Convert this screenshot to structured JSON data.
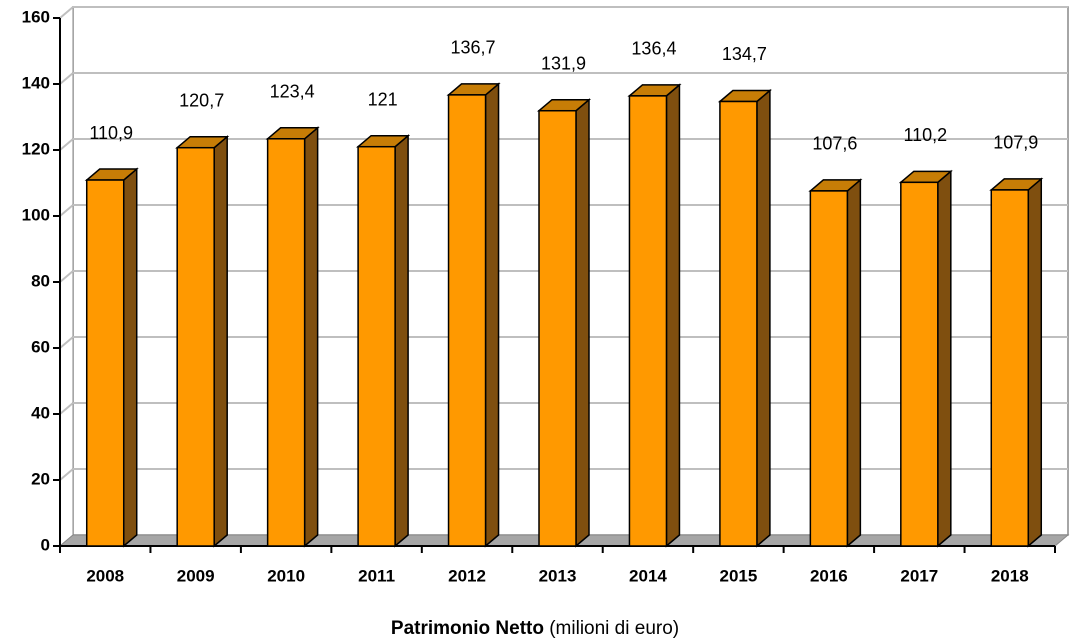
{
  "chart_data": {
    "type": "bar3d",
    "categories": [
      "2008",
      "2009",
      "2010",
      "2011",
      "2012",
      "2013",
      "2014",
      "2015",
      "2016",
      "2017",
      "2018"
    ],
    "values": [
      110.9,
      120.7,
      123.4,
      121,
      136.7,
      131.9,
      136.4,
      134.7,
      107.6,
      110.2,
      107.9
    ],
    "value_labels": [
      "110,9",
      "120,7",
      "123,4",
      "121",
      "136,7",
      "131,9",
      "136,4",
      "134,7",
      "107,6",
      "110,2",
      "107,9"
    ],
    "color": "#ff9900",
    "ylim": [
      0,
      160
    ],
    "yticks": [
      0,
      20,
      40,
      60,
      80,
      100,
      120,
      140,
      160
    ],
    "grid": true,
    "x_label": "Patrimonio Netto",
    "x_label_note": "(milioni di euro)"
  }
}
